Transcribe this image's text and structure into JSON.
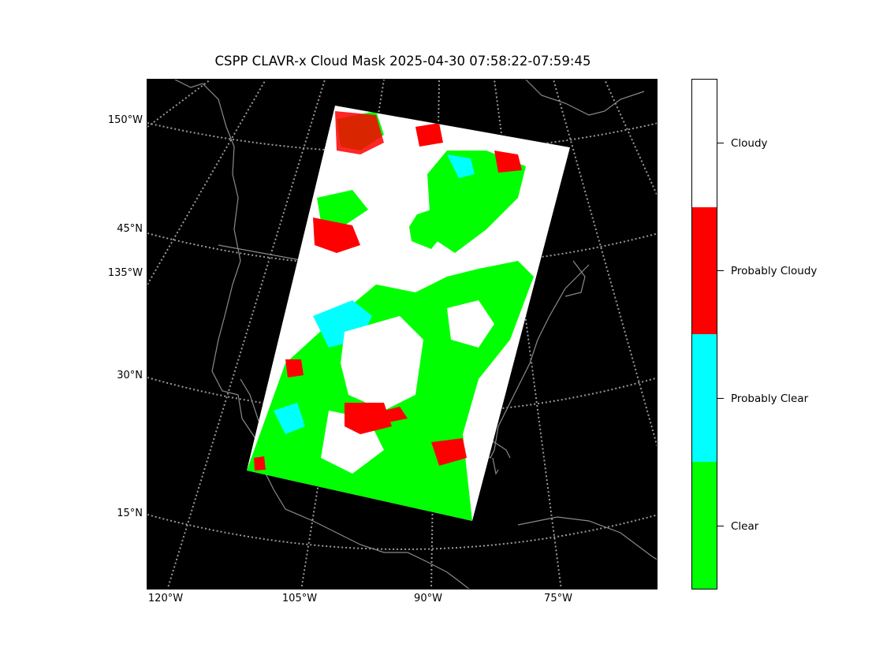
{
  "title": "CSPP CLAVR-x Cloud Mask 2025-04-30 07:58:22-07:59:45",
  "map": {
    "background": "#000000",
    "graticule_color": "#9a9a9a",
    "coastline_color": "#8a8a8a",
    "lat_labels": [
      "150°W",
      "45°N",
      "135°W",
      "30°N",
      "15°N"
    ],
    "lon_labels": [
      "120°W",
      "105°W",
      "90°W",
      "75°W"
    ]
  },
  "colorbar": {
    "categories": [
      {
        "label": "Cloudy",
        "color": "#ffffff"
      },
      {
        "label": "Probably Cloudy",
        "color": "#ff0000"
      },
      {
        "label": "Probably Clear",
        "color": "#00ffff"
      },
      {
        "label": "Clear",
        "color": "#00ff00"
      }
    ]
  },
  "swath": {
    "coverage": [
      "Cloudy",
      "Probably Cloudy",
      "Probably Clear",
      "Clear"
    ]
  }
}
